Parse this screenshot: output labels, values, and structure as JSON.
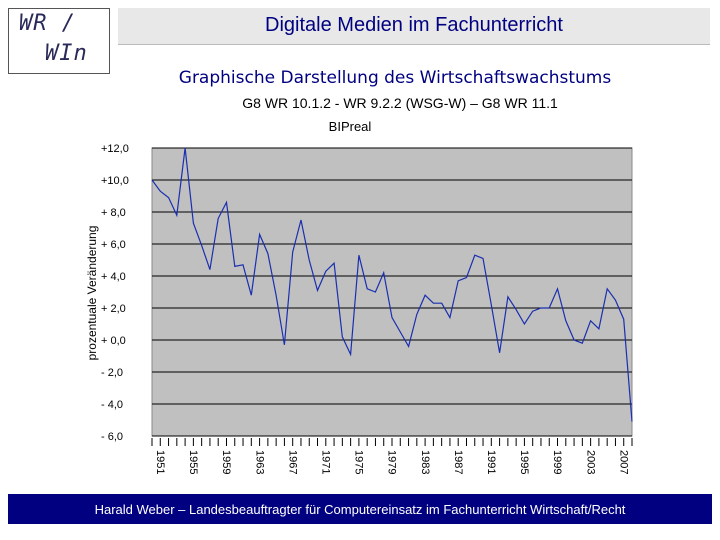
{
  "logo": {
    "line1": "WR /",
    "line2": "WIn"
  },
  "header": {
    "title": "Digitale Medien im Fachunterricht"
  },
  "subtitle": {
    "main": "Graphische Darstellung des Wirtschaftswachstums",
    "curriculum": "G8 WR 10.1.2 - WR 9.2.2 (WSG-W) – G8 WR 11.1"
  },
  "footer": {
    "text": "Harald Weber – Landesbeauftragter für Computereinsatz im Fachunterricht Wirtschaft/Recht"
  },
  "chart_data": {
    "type": "line",
    "title": "BIPreal",
    "ylabel": "prozentuale Veränderung",
    "xlabel": "",
    "ylim": [
      -6,
      12
    ],
    "xlim": [
      1951,
      2009
    ],
    "grid": "horizontal",
    "plot_background": "#c0c0c0",
    "line_color": "#1a2fb0",
    "y_ticks": [
      {
        "value": 12,
        "label": "+12,0"
      },
      {
        "value": 10,
        "label": "+10,0"
      },
      {
        "value": 8,
        "label": "+ 8,0"
      },
      {
        "value": 6,
        "label": "+ 6,0"
      },
      {
        "value": 4,
        "label": "+ 4,0"
      },
      {
        "value": 2,
        "label": "+ 2,0"
      },
      {
        "value": 0,
        "label": "+ 0,0"
      },
      {
        "value": -2,
        "label": "-  2,0"
      },
      {
        "value": -4,
        "label": "-  4,0"
      },
      {
        "value": -6,
        "label": "-  6,0"
      }
    ],
    "x_tick_labels": [
      "1951",
      "1955",
      "1959",
      "1963",
      "1967",
      "1971",
      "1975",
      "1979",
      "1983",
      "1987",
      "1991",
      "1995",
      "1999",
      "2003",
      "2007"
    ],
    "series": [
      {
        "x": [
          1951,
          1952,
          1953,
          1954,
          1955,
          1956,
          1957,
          1958,
          1959,
          1960,
          1961,
          1962,
          1963,
          1964,
          1965,
          1966,
          1967,
          1968,
          1969,
          1970,
          1971,
          1972,
          1973,
          1974,
          1975,
          1976,
          1977,
          1978,
          1979,
          1980,
          1981,
          1982,
          1983,
          1984,
          1985,
          1986,
          1987,
          1988,
          1989,
          1990,
          1991,
          1992,
          1993,
          1994,
          1995,
          1996,
          1997,
          1998,
          1999,
          2000,
          2001,
          2002,
          2003,
          2004,
          2005,
          2006,
          2007,
          2008,
          2009
        ],
        "y": [
          10.0,
          9.3,
          8.9,
          7.8,
          12.0,
          7.3,
          5.9,
          4.4,
          7.6,
          8.6,
          4.6,
          4.7,
          2.8,
          6.6,
          5.4,
          2.8,
          -0.3,
          5.5,
          7.5,
          5.0,
          3.1,
          4.3,
          4.8,
          0.2,
          -0.9,
          5.3,
          3.2,
          3.0,
          4.2,
          1.4,
          0.5,
          -0.4,
          1.6,
          2.8,
          2.3,
          2.3,
          1.4,
          3.7,
          3.9,
          5.3,
          5.1,
          2.2,
          -0.8,
          2.7,
          1.9,
          1.0,
          1.8,
          2.0,
          2.0,
          3.2,
          1.2,
          0.0,
          -0.2,
          1.2,
          0.7,
          3.2,
          2.5,
          1.3,
          -5.1
        ]
      }
    ]
  }
}
